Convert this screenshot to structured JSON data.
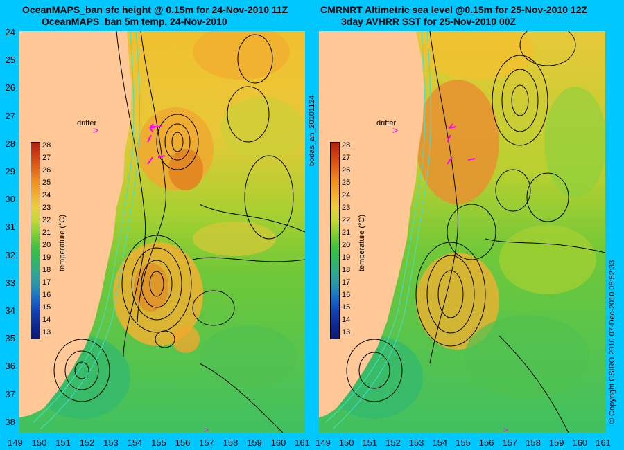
{
  "left_panel": {
    "title_line1": "OceanMAPS_ban sfc height @ 0.15m for 24-Nov-2010 11Z",
    "title_line2": "OceanMAPS_ban 5m temp. 24-Nov-2010",
    "drifter_label": "drifter"
  },
  "right_panel": {
    "title_line1": "CMRNRT Altimetric sea level  @0.15m  for 25-Nov-2010 12Z",
    "title_line2": "3day AVHRR SST for 25-Nov-2010 00Z",
    "drifter_label": "drifter"
  },
  "latitude_labels": [
    "24",
    "25",
    "26",
    "27",
    "28",
    "29",
    "30",
    "31",
    "32",
    "33",
    "34",
    "35",
    "36",
    "37",
    "38"
  ],
  "longitude_labels": [
    "149",
    "150",
    "151",
    "152",
    "153",
    "154",
    "155",
    "156",
    "157",
    "158",
    "159",
    "160",
    "161"
  ],
  "colorbar": {
    "label": "temperature (°C)",
    "ticks": [
      "28",
      "27",
      "26",
      "25",
      "24",
      "23",
      "22",
      "21",
      "20",
      "19",
      "18",
      "17",
      "16",
      "15",
      "14",
      "13"
    ]
  },
  "side_label": "bodas_an_20101124",
  "copyright": "© Copyright CSIRO 2010  07-Dec-2010 08:52:33",
  "colors": {
    "background": "#00c8ff",
    "land": "#ffc896",
    "drifter": "#ff00ff",
    "contour": "#000000",
    "isobath": "#40e0d0"
  }
}
